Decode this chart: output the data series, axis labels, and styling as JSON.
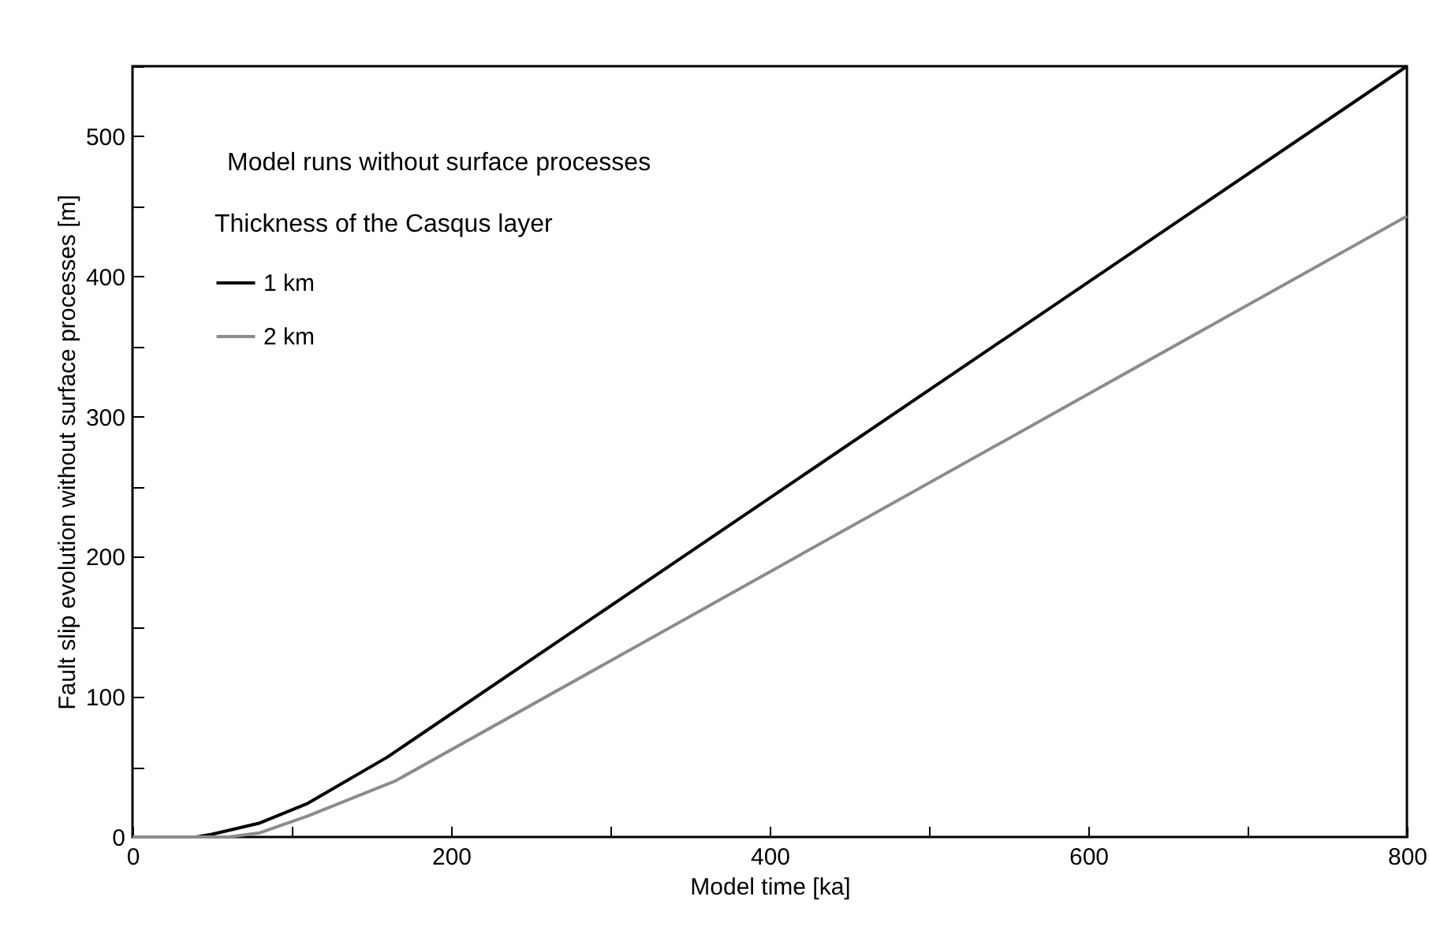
{
  "chart_data": {
    "type": "line",
    "xlabel": "Model time [ka]",
    "ylabel": "Fault slip evolution without surface processes [m]",
    "legend_title": "Thickness of the Casqus layer",
    "annotations": [
      "Model runs without surface processes"
    ],
    "xlim": [
      0,
      800
    ],
    "ylim": [
      0,
      550
    ],
    "xticks": [
      0,
      {
        "value": 100,
        "label": null
      },
      200,
      {
        "value": 300,
        "label": null
      },
      400,
      {
        "value": 500,
        "label": null
      },
      600,
      {
        "value": 700,
        "label": null
      },
      800
    ],
    "yticks": [
      0,
      {
        "value": 50,
        "label": null
      },
      100,
      {
        "value": 150,
        "label": null
      },
      200,
      {
        "value": 250,
        "label": null
      },
      300,
      {
        "value": 350,
        "label": null
      },
      400,
      {
        "value": 450,
        "label": null
      },
      500,
      {
        "value": 550,
        "label": null
      }
    ],
    "legend": "top left",
    "grid": false,
    "series": [
      {
        "name": "1 km",
        "color": "#000000",
        "x": [
          0,
          40,
          50,
          80,
          110,
          160,
          800
        ],
        "values": [
          0,
          0,
          2,
          10,
          24,
          57,
          550
        ]
      },
      {
        "name": "2 km",
        "color": "#8c8c8c",
        "x": [
          0,
          60,
          80,
          110,
          165,
          800
        ],
        "values": [
          0,
          0,
          3,
          15,
          40,
          443
        ]
      }
    ]
  }
}
